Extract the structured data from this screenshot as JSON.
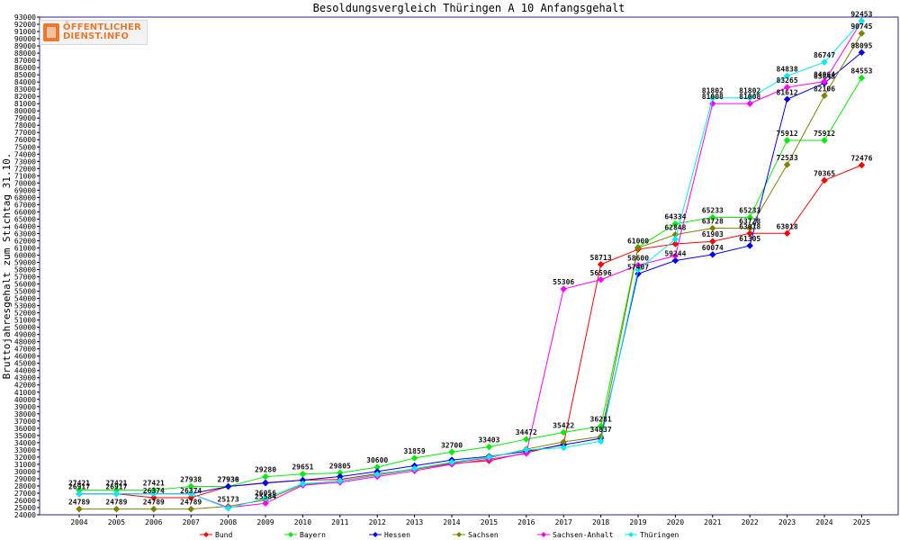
{
  "logo": {
    "line1": "ÖFFENTLICHER",
    "line2": "DIENST.INFO"
  },
  "chart_data": {
    "type": "line",
    "title": "Besoldungsvergleich Thüringen A 10 Anfangsgehalt",
    "xlabel": "",
    "ylabel": "Bruttojahresgehalt zum Stichtag 31.10.",
    "ylim": [
      24000,
      93000
    ],
    "ytick_step": 1000,
    "grid": false,
    "legend_position": "bottom",
    "categories": [
      "2004",
      "2005",
      "2006",
      "2007",
      "2008",
      "2009",
      "2010",
      "2011",
      "2012",
      "2013",
      "2014",
      "2015",
      "2016",
      "2017",
      "2018",
      "2019",
      "2020",
      "2021",
      "2022",
      "2023",
      "2024",
      "2025"
    ],
    "series": [
      {
        "name": "Bund",
        "color": "#ff0000",
        "values": [
          26917,
          26917,
          26374,
          26374,
          27930,
          28450,
          28800,
          28900,
          29700,
          30300,
          31100,
          31500,
          32600,
          33800,
          58713,
          60800,
          61550,
          61903,
          63018,
          63018,
          70365,
          72476
        ],
        "labels": [
          "26917",
          "26917",
          "26374",
          "26374",
          "27930",
          "",
          "",
          "",
          "",
          "",
          "",
          "",
          "",
          "",
          "58713",
          "",
          "",
          "61903",
          "63018",
          "63018",
          "70365",
          "72476"
        ]
      },
      {
        "name": "Bayern",
        "color": "#00ee00",
        "values": [
          27421,
          27421,
          27421,
          27938,
          27938,
          29280,
          29651,
          29805,
          30600,
          31859,
          32700,
          33403,
          34472,
          35422,
          36281,
          61100,
          64334,
          65233,
          65233,
          75912,
          75912,
          84553
        ],
        "labels": [
          "27421",
          "27421",
          "27421",
          "27938",
          "27938",
          "29280",
          "29651",
          "29805",
          "30600",
          "31859",
          "32700",
          "33403",
          "34472",
          "35422",
          "36281",
          "",
          "64334",
          "65233",
          "65233",
          "75912",
          "75912",
          "84553"
        ]
      },
      {
        "name": "Hessen",
        "color": "#0000ee",
        "values": [
          26917,
          26917,
          26917,
          26917,
          27930,
          28400,
          28800,
          29300,
          30000,
          30800,
          31600,
          32100,
          32800,
          33700,
          34600,
          57407,
          59244,
          60074,
          61305,
          81612,
          83845,
          88095
        ],
        "labels": [
          "",
          "",
          "",
          "",
          "",
          "",
          "",
          "",
          "",
          "",
          "",
          "",
          "",
          "",
          "",
          "57407",
          "59244",
          "60074",
          "61305",
          "81612",
          "83845",
          "88095"
        ]
      },
      {
        "name": "Sachsen",
        "color": "#808000",
        "values": [
          24789,
          24789,
          24789,
          24789,
          25173,
          26056,
          28200,
          28700,
          29500,
          30300,
          31200,
          31900,
          33100,
          34100,
          34837,
          61000,
          62848,
          63728,
          63728,
          72533,
          82106,
          90745
        ],
        "labels": [
          "24789",
          "24789",
          "24789",
          "24789",
          "25173",
          "26056",
          "",
          "",
          "",
          "",
          "",
          "",
          "",
          "",
          "34837",
          "61000",
          "62848",
          "63728",
          "63728",
          "72533",
          "82106",
          "90745"
        ]
      },
      {
        "name": "Sachsen-Anhalt",
        "color": "#ff00ff",
        "values": [
          26917,
          26917,
          26917,
          26917,
          25000,
          25584,
          28100,
          28500,
          29300,
          30100,
          31000,
          31700,
          32500,
          55306,
          56596,
          58600,
          59900,
          81008,
          81008,
          83265,
          84064,
          92453
        ],
        "labels": [
          "",
          "",
          "",
          "",
          "",
          "25584",
          "",
          "",
          "",
          "",
          "",
          "",
          "",
          "55306",
          "56596",
          "58600",
          "",
          "81008",
          "81008",
          "83265",
          "84064",
          "92453"
        ]
      },
      {
        "name": "Thüringen",
        "color": "#00eeee",
        "values": [
          26917,
          26917,
          26917,
          26917,
          24900,
          26300,
          28300,
          28700,
          29600,
          30400,
          31300,
          32000,
          33000,
          33300,
          34200,
          58000,
          62200,
          81802,
          81802,
          84838,
          86747,
          92453
        ],
        "labels": [
          "",
          "",
          "",
          "",
          "",
          "",
          "",
          "",
          "",
          "",
          "",
          "",
          "",
          "",
          "",
          "",
          "",
          "81802",
          "81802",
          "84838",
          "86747",
          ""
        ]
      }
    ]
  }
}
